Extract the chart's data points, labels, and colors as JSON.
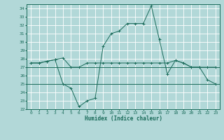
{
  "xlabel": "Humidex (Indice chaleur)",
  "background_color": "#b2d8d8",
  "grid_color": "#ffffff",
  "line_color": "#1a6b5a",
  "xlim": [
    -0.5,
    23.5
  ],
  "ylim": [
    22,
    34.5
  ],
  "yticks": [
    22,
    23,
    24,
    25,
    26,
    27,
    28,
    29,
    30,
    31,
    32,
    33,
    34
  ],
  "xticks": [
    0,
    1,
    2,
    3,
    4,
    5,
    6,
    7,
    8,
    9,
    10,
    11,
    12,
    13,
    14,
    15,
    16,
    17,
    18,
    19,
    20,
    21,
    22,
    23
  ],
  "curve1_x": [
    0,
    1,
    2,
    3,
    4,
    5,
    6,
    7,
    8,
    9,
    10,
    11,
    12,
    13,
    14,
    15,
    16,
    17,
    18,
    19,
    20,
    21,
    22,
    23
  ],
  "curve1_y": [
    27.5,
    27.5,
    27.7,
    27.9,
    25.0,
    24.5,
    22.3,
    23.0,
    23.3,
    29.5,
    31.0,
    31.3,
    32.2,
    32.2,
    32.2,
    34.3,
    30.3,
    26.2,
    27.8,
    27.5,
    27.0,
    27.0,
    25.5,
    25.0
  ],
  "curve2_x": [
    0,
    1,
    2,
    3,
    4,
    5,
    6,
    7,
    8,
    9,
    10,
    11,
    12,
    13,
    14,
    15,
    16,
    17,
    18,
    19,
    20,
    21,
    22,
    23
  ],
  "curve2_y": [
    27.5,
    27.5,
    27.7,
    27.9,
    28.1,
    27.0,
    27.0,
    27.5,
    27.5,
    27.5,
    27.5,
    27.5,
    27.5,
    27.5,
    27.5,
    27.5,
    27.5,
    27.5,
    27.8,
    27.5,
    27.0,
    27.0,
    27.0,
    27.0
  ],
  "hline_y1": 27.0,
  "hline_y2": 25.0,
  "figwidth": 3.2,
  "figheight": 2.0,
  "dpi": 100
}
